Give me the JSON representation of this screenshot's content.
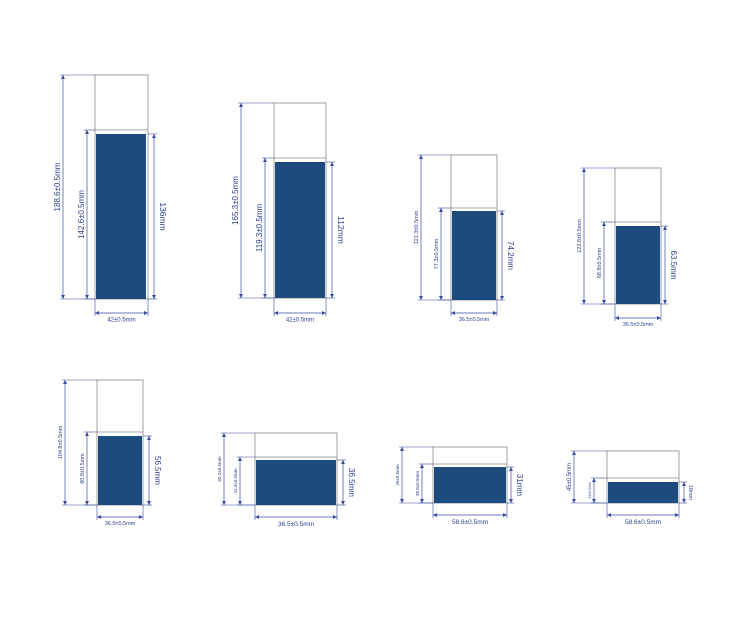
{
  "colors": {
    "label_fill": "#1c4c7e",
    "outline": "#888888",
    "dimension": "#3a4aa0",
    "text": "#2c3f8e"
  },
  "containers": [
    {
      "id": "c1",
      "total_height": "188.6±0.5mm",
      "body_height": "142.6±0.5mm",
      "label_height": "136mm",
      "width": "42±0.5mm"
    },
    {
      "id": "c2",
      "total_height": "165.3±0.5mm",
      "body_height": "119.3±0.5mm",
      "label_height": "112mm",
      "width": "42±0.5mm"
    },
    {
      "id": "c3",
      "total_height": "121.3±0.5mm",
      "body_height": "77.3±0.5mm",
      "label_height": "74.2mm",
      "width": "36.5±0.5mm"
    },
    {
      "id": "c4",
      "total_height": "122.8±0.5mm",
      "body_height": "68.8±0.5mm",
      "label_height": "63.5mm",
      "width": "36.5±0.5mm"
    },
    {
      "id": "c5",
      "total_height": "104.8±0.5mm",
      "body_height": "60.8±0.5mm",
      "label_height": "56.5mm",
      "width": "36.5±0.5mm"
    },
    {
      "id": "c6",
      "total_height": "60.3±0.5mm",
      "body_height": "41.3±0.5mm",
      "label_height": "36.5mm",
      "width": "36.5±0.5mm"
    },
    {
      "id": "c7",
      "total_height": "49±0.5mm",
      "body_height": "38.8±0.5mm",
      "label_height": "31mm",
      "width": "58.6±0.5mm"
    },
    {
      "id": "c8",
      "total_height": "45±0.5mm",
      "body_height": "23±0.5mm",
      "label_height": "18mm",
      "width": "58.6±0.5mm"
    }
  ]
}
